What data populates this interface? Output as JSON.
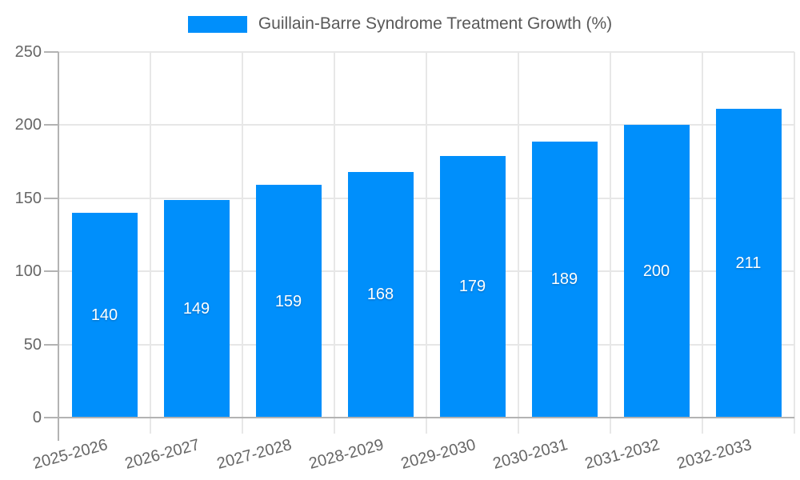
{
  "chart_data": {
    "type": "bar",
    "title": "Guillain-Barre Syndrome Treatment Growth (%)",
    "categories": [
      "2025-2026",
      "2026-2027",
      "2027-2028",
      "2028-2029",
      "2029-2030",
      "2030-2031",
      "2031-2032",
      "2032-2033"
    ],
    "series": [
      {
        "name": "Guillain-Barre Syndrome Treatment Growth (%)",
        "values": [
          140,
          149,
          159,
          168,
          179,
          189,
          200,
          211
        ]
      }
    ],
    "xlabel": "",
    "ylabel": "",
    "ylim": [
      0,
      250
    ],
    "y_ticks": [
      0,
      50,
      100,
      150,
      200,
      250
    ],
    "grid": "horizontal-and-vertical",
    "legend_position": "top",
    "data_labels": "inside-center",
    "colors": {
      "bar": "#008FFB",
      "axis_line": "#b3b3b3",
      "grid_line": "#e7e7e7",
      "tick_text": "#666666",
      "legend_text": "#595959",
      "data_label_text": "#ffffff"
    }
  }
}
